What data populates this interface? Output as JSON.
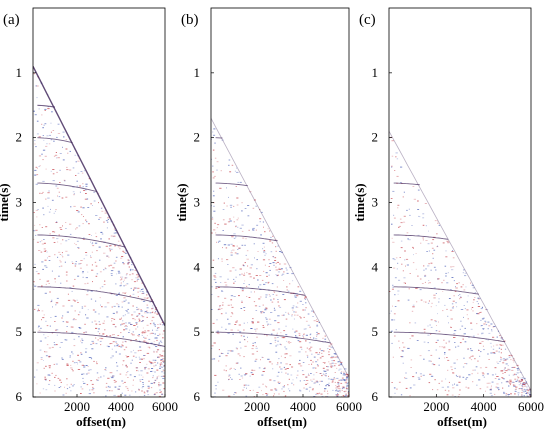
{
  "figure": {
    "panels": [
      {
        "label": "(a)",
        "ylabel": "time(s)",
        "xlabel": "offset(m)",
        "yticks": [
          "1",
          "2",
          "3",
          "4",
          "5",
          "6"
        ],
        "xticks": [
          "2000",
          "4000",
          "6000"
        ]
      },
      {
        "label": "(b)",
        "ylabel": "time(s)",
        "xlabel": "offset(m)",
        "yticks": [
          "1",
          "2",
          "3",
          "4",
          "5",
          "6"
        ],
        "xticks": [
          "2000",
          "4000",
          "6000"
        ]
      },
      {
        "label": "(c)",
        "ylabel": "time(s)",
        "xlabel": "offset(m)",
        "yticks": [
          "1",
          "2",
          "3",
          "4",
          "5",
          "6"
        ],
        "xticks": [
          "2000",
          "4000",
          "6000"
        ]
      }
    ],
    "colors": {
      "trace_dark": "#3a1f55",
      "trace_red": "#c0303a",
      "trace_blue": "#3a50b0",
      "frame": "#000000"
    }
  }
}
